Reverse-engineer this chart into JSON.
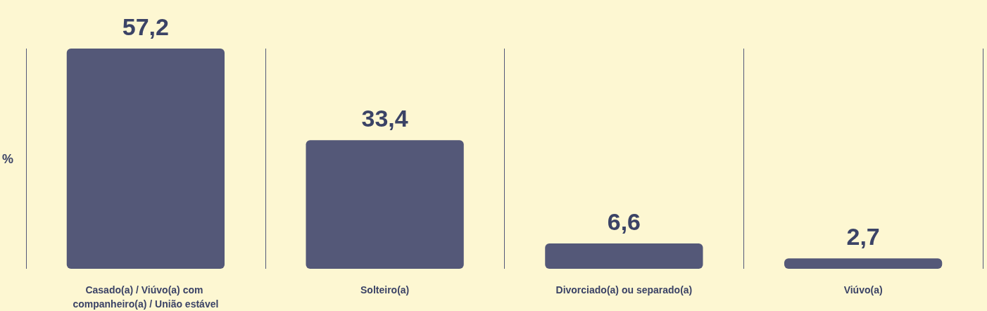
{
  "chart_data": {
    "type": "bar",
    "ylabel": "%",
    "categories": [
      "Casado(a) / Viúvo(a) com companheiro(a) / União estável",
      "Solteiro(a)",
      "Divorciado(a) ou separado(a)",
      "Viúvo(a)"
    ],
    "values": [
      57.2,
      33.4,
      6.6,
      2.7
    ],
    "value_labels": [
      "57,2",
      "33,4",
      "6,6",
      "2,7"
    ],
    "color": "#545878",
    "grid": "x"
  }
}
